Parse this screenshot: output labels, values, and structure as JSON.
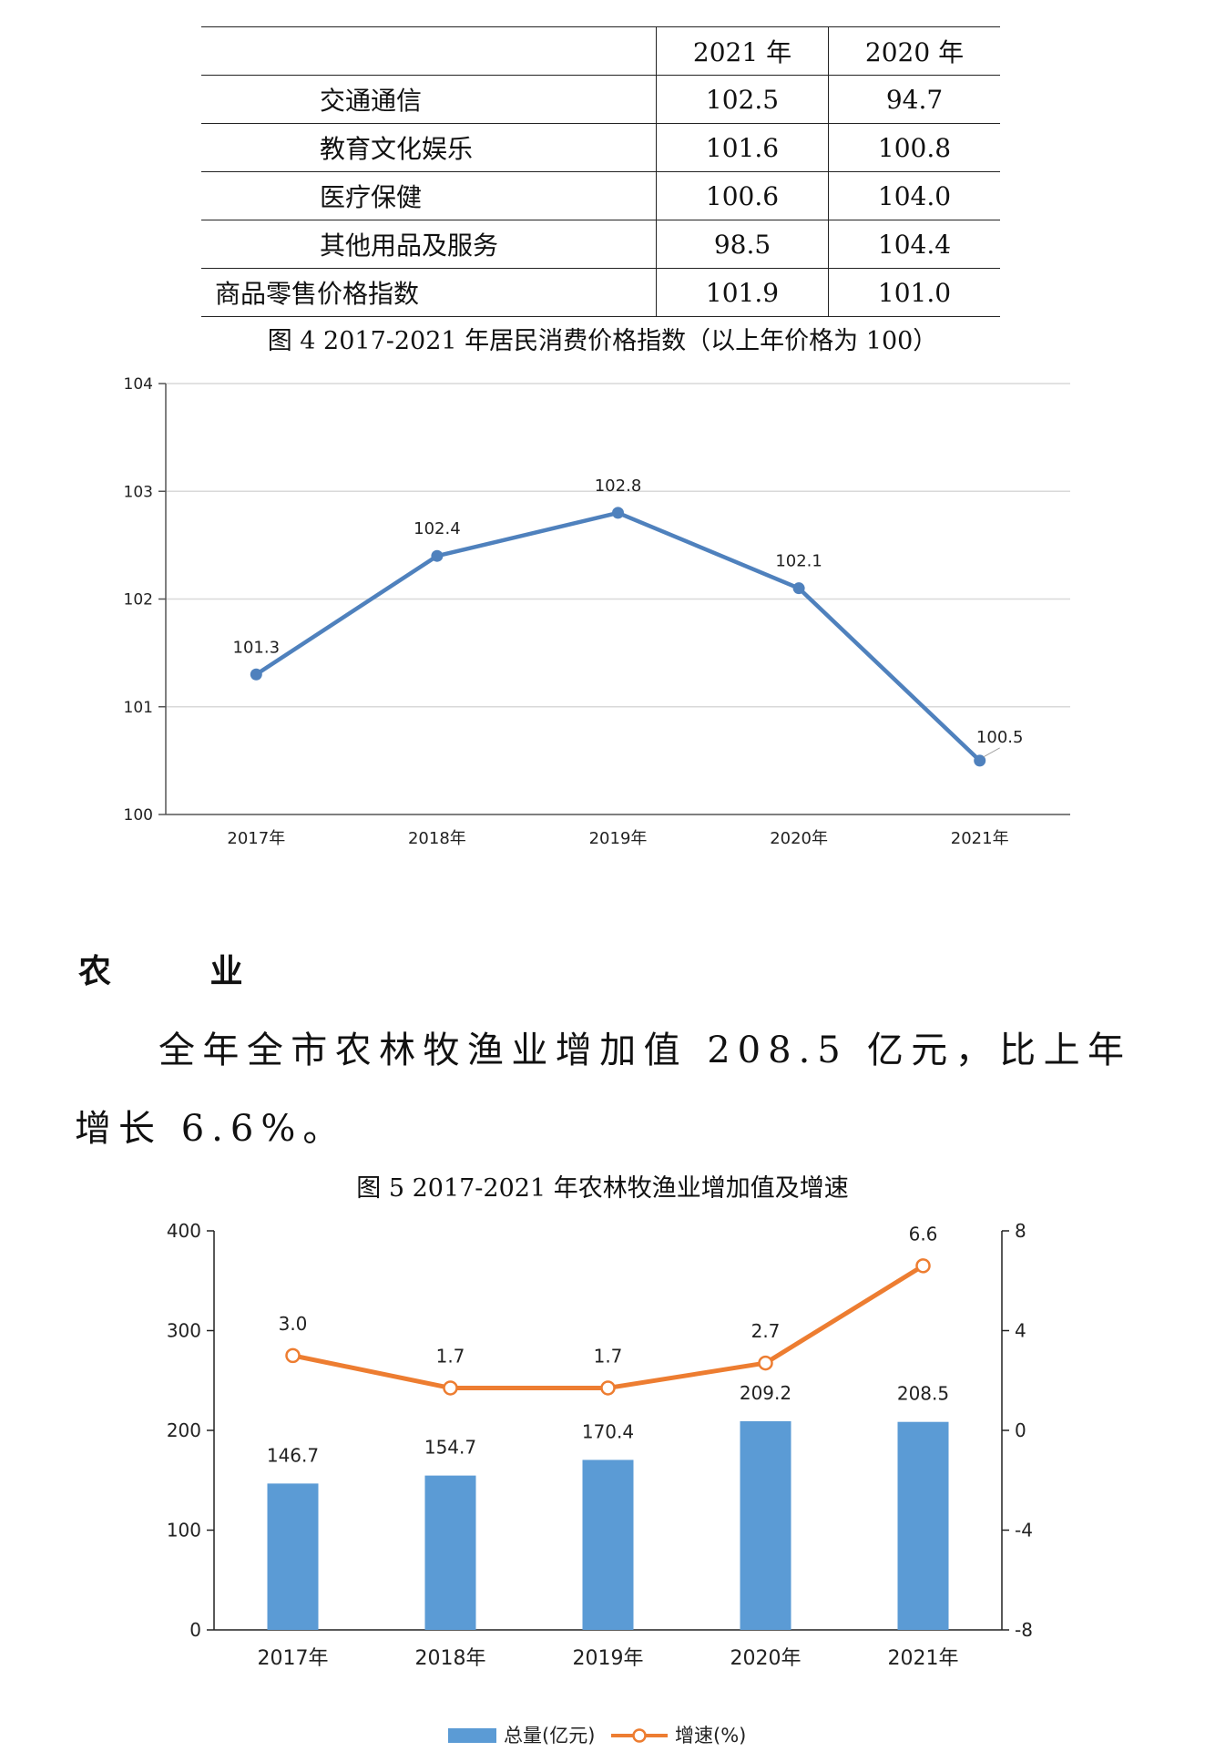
{
  "table": {
    "header": [
      "",
      "2021 年",
      "2020 年"
    ],
    "rows": [
      {
        "label": "交通通信",
        "v2021": "102.5",
        "v2020": "94.7",
        "indent": true
      },
      {
        "label": "教育文化娱乐",
        "v2021": "101.6",
        "v2020": "100.8",
        "indent": true
      },
      {
        "label": "医疗保健",
        "v2021": "100.6",
        "v2020": "104.0",
        "indent": true
      },
      {
        "label": "其他用品及服务",
        "v2021": "98.5",
        "v2020": "104.4",
        "indent": true
      },
      {
        "label": "商品零售价格指数",
        "v2021": "101.9",
        "v2020": "101.0",
        "indent": false
      }
    ]
  },
  "section": {
    "heading": "农 业",
    "paragraph": "全年全市农林牧渔业增加值 208.5 亿元，比上年增长 6.6%。"
  },
  "chart_data": [
    {
      "type": "line",
      "title": "图 4 2017-2021 年居民消费价格指数（以上年价格为 100）",
      "categories": [
        "2017年",
        "2018年",
        "2019年",
        "2020年",
        "2021年"
      ],
      "series": [
        {
          "values": [
            101.3,
            102.4,
            102.8,
            102.1,
            100.5
          ]
        }
      ],
      "value_labels": [
        "101.3",
        "102.4",
        "102.8",
        "102.1",
        "100.5"
      ],
      "ylim": [
        100,
        104
      ],
      "yticks": [
        "100",
        "101",
        "102",
        "103",
        "104"
      ],
      "grid": true,
      "color": "#4f81bd"
    },
    {
      "type": "bar",
      "title": "图 5 2017-2021 年农林牧渔业增加值及增速",
      "categories": [
        "2017年",
        "2018年",
        "2019年",
        "2020年",
        "2021年"
      ],
      "series": [
        {
          "name": "总量(亿元)",
          "type": "bar",
          "values": [
            146.7,
            154.7,
            170.4,
            209.2,
            208.5
          ],
          "labels": [
            "146.7",
            "154.7",
            "170.4",
            "209.2",
            "208.5"
          ],
          "color": "#5b9bd5",
          "axis": "left"
        },
        {
          "name": "增速(%)",
          "type": "line",
          "values": [
            3.0,
            1.7,
            1.7,
            2.7,
            6.6
          ],
          "labels": [
            "3.0",
            "1.7",
            "1.7",
            "2.7",
            "6.6"
          ],
          "color": "#ed7d31",
          "axis": "right"
        }
      ],
      "ylim_left": [
        0,
        400
      ],
      "yticks_left": [
        "0",
        "100",
        "200",
        "300",
        "400"
      ],
      "ylim_right": [
        -8,
        8
      ],
      "yticks_right": [
        "-8",
        "-4",
        "0",
        "4",
        "8"
      ],
      "grid": false,
      "legend": "bottom"
    }
  ]
}
